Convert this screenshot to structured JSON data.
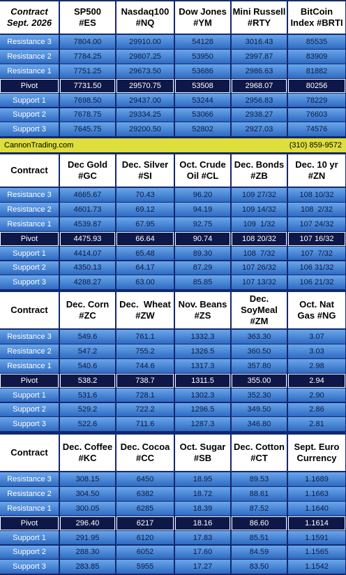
{
  "banner": {
    "left": "CannonTrading.com",
    "right": "(310) 859-9572"
  },
  "sections": [
    {
      "header": [
        [
          "Contract",
          "Sept. 2026"
        ],
        [
          "SP500",
          "#ES"
        ],
        [
          "Nasdaq100",
          "#NQ"
        ],
        [
          "Dow Jones",
          "#YM"
        ],
        [
          "Mini Russell",
          "#RTY"
        ],
        [
          "BitCoin",
          "Index #BRTI"
        ]
      ],
      "rows": [
        [
          "Resistance 3",
          "7804.00",
          "29910.00",
          "54128",
          "3016.43",
          "85535"
        ],
        [
          "Resistance 2",
          "7784.25",
          "29807.25",
          "53950",
          "2997.87",
          "83909"
        ],
        [
          "Resistance 1",
          "7751.25",
          "29673.50",
          "53686",
          "2986.63",
          "81882"
        ],
        [
          "Pivot",
          "7731.50",
          "29570.75",
          "53508",
          "2968.07",
          "80256"
        ],
        [
          "Support 1",
          "7698.50",
          "29437.00",
          "53244",
          "2956.83",
          "78229"
        ],
        [
          "Support 2",
          "7678.75",
          "29334.25",
          "53066",
          "2938.27",
          "76603"
        ],
        [
          "Support 3",
          "7645.75",
          "29200.50",
          "52802",
          "2927.03",
          "74576"
        ]
      ]
    },
    {
      "header": [
        [
          "Contract"
        ],
        [
          "Dec Gold",
          "#GC"
        ],
        [
          "Dec. Silver",
          "#SI"
        ],
        [
          "Oct. Crude",
          "Oil #CL"
        ],
        [
          "Dec. Bonds",
          "#ZB"
        ],
        [
          "Dec. 10 yr",
          "#ZN"
        ]
      ],
      "rows": [
        [
          "Resistance 3",
          "4665.67",
          "70.43",
          "96.20",
          "109 27/32",
          "108 10/32"
        ],
        [
          "Resistance 2",
          "4601.73",
          "69.12",
          "94.19",
          "109 14/32",
          "108  2/32"
        ],
        [
          "Resistance 1",
          "4539.87",
          "67.95",
          "92.75",
          "109  1/32",
          "107 24/32"
        ],
        [
          "Pivot",
          "4475.93",
          "66.64",
          "90.74",
          "108 20/32",
          "107 16/32"
        ],
        [
          "Support 1",
          "4414.07",
          "65.48",
          "89.30",
          "108  7/32",
          "107  7/32"
        ],
        [
          "Support 2",
          "4350.13",
          "64.17",
          "87.29",
          "107 26/32",
          "106 31/32"
        ],
        [
          "Support 3",
          "4288.27",
          "63.00",
          "85.85",
          "107 13/32",
          "106 21/32"
        ]
      ]
    },
    {
      "header": [
        [
          "Contract"
        ],
        [
          "Dec. Corn",
          "#ZC"
        ],
        [
          "Dec.  Wheat",
          "#ZW"
        ],
        [
          "Nov. Beans",
          "#ZS"
        ],
        [
          "Dec.",
          "SoyMeal",
          "#ZM"
        ],
        [
          "Oct. Nat",
          "Gas #NG"
        ]
      ],
      "rows": [
        [
          "Resistance 3",
          "549.6",
          "761.1",
          "1332.3",
          "363.30",
          "3.07"
        ],
        [
          "Resistance 2",
          "547.2",
          "755.2",
          "1326.5",
          "360.50",
          "3.03"
        ],
        [
          "Resistance 1",
          "540.6",
          "744.6",
          "1317.3",
          "357.80",
          "2.98"
        ],
        [
          "Pivot",
          "538.2",
          "738.7",
          "1311.5",
          "355.00",
          "2.94"
        ],
        [
          "Support 1",
          "531.6",
          "728.1",
          "1302.3",
          "352.30",
          "2.90"
        ],
        [
          "Support 2",
          "529.2",
          "722.2",
          "1296.5",
          "349.50",
          "2.86"
        ],
        [
          "Support 3",
          "522.6",
          "711.6",
          "1287.3",
          "346.80",
          "2.81"
        ]
      ]
    },
    {
      "header": [
        [
          "Contract"
        ],
        [
          "Dec. Coffee",
          "#KC"
        ],
        [
          "Dec. Cocoa",
          "#CC"
        ],
        [
          "Oct. Sugar",
          "#SB"
        ],
        [
          "Dec. Cotton",
          "#CT"
        ],
        [
          "Sept. Euro",
          "Currency"
        ]
      ],
      "rows": [
        [
          "Resistance 3",
          "308.15",
          "6450",
          "18.95",
          "89.53",
          "1.1689"
        ],
        [
          "Resistance 2",
          "304.50",
          "6382",
          "18.72",
          "88.61",
          "1.1663"
        ],
        [
          "Resistance 1",
          "300.05",
          "6285",
          "18.39",
          "87.52",
          "1.1640"
        ],
        [
          "Pivot",
          "296.40",
          "6217",
          "18.16",
          "86.60",
          "1.1614"
        ],
        [
          "Support 1",
          "291.95",
          "6120",
          "17.83",
          "85.51",
          "1.1591"
        ],
        [
          "Support 2",
          "288.30",
          "6052",
          "17.60",
          "84.59",
          "1.1565"
        ],
        [
          "Support 3",
          "283.85",
          "5955",
          "17.27",
          "83.50",
          "1.1542"
        ]
      ]
    }
  ]
}
